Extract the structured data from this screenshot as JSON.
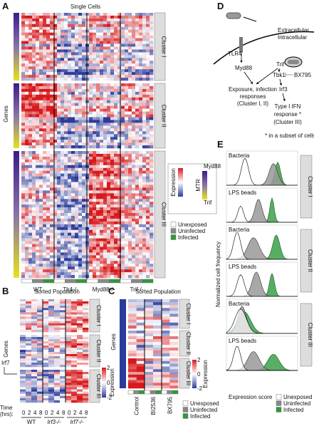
{
  "panel_a": {
    "letter": "A",
    "title": "Single Cells",
    "y_label": "Genes",
    "clusters": [
      "Cluster I",
      "Cluster II",
      "Cluster III"
    ],
    "groups": [
      "WT",
      "Tlr4-/-",
      "Myd88-/-",
      "Trif-/-"
    ],
    "colorbar_label": "Expression",
    "mtr_label": "MTR",
    "mtr_top": "Myd88",
    "mtr_bottom": "Trif"
  },
  "legend": [
    "Unexposed",
    "Uninfected",
    "Infected"
  ],
  "panel_b": {
    "letter": "B",
    "title": "Sorted Population",
    "y_label": "Genes",
    "marker": "Irf7",
    "clusters": [
      "Cluster I",
      "Cluster II",
      "Cluster III"
    ],
    "time_label": "Time",
    "time_unit": "(hrs):",
    "times": [
      "0",
      "2",
      "4",
      "8"
    ],
    "groups": [
      "WT",
      "Irf3-/-",
      "Irf7-/-"
    ],
    "colorbar_ticks": [
      "2",
      "0",
      "-2"
    ],
    "colorbar_label": "Expression"
  },
  "panel_c": {
    "letter": "C",
    "title": "Sorted Population",
    "y_label": "Genes",
    "clusters": [
      "Cluster I",
      "Cluster II",
      "Cluster III"
    ],
    "groups": [
      "Control",
      "BI2536",
      "BX795"
    ],
    "colorbar_ticks": [
      "2",
      "0",
      "-2"
    ],
    "colorbar_label": "Expression"
  },
  "panel_d": {
    "letter": "D",
    "receptor": "TLR4",
    "extracellular": "Extracellular",
    "intracellular": "Intracellular",
    "myd88": "Myd88",
    "trif": "Trif",
    "tbk1": "Tbk1",
    "inhibitor": "BX795",
    "irf3": "Irf3",
    "response1": [
      "Exposure, infection",
      "responses",
      "(Cluster I, II)"
    ],
    "response2": [
      "Type I IFN",
      "response *",
      "(Cluster III)"
    ],
    "footnote": "* in a subset of cells"
  },
  "panel_e": {
    "letter": "E",
    "conditions": [
      "Bacteria",
      "LPS beads",
      "Bacteria",
      "LPS beads",
      "Bacteria",
      "LPS beads"
    ],
    "clusters": [
      "Cluster I",
      "Cluster II",
      "Cluster III"
    ],
    "y_label": "Normalized cell frequency",
    "x_label": "Expression score"
  }
}
